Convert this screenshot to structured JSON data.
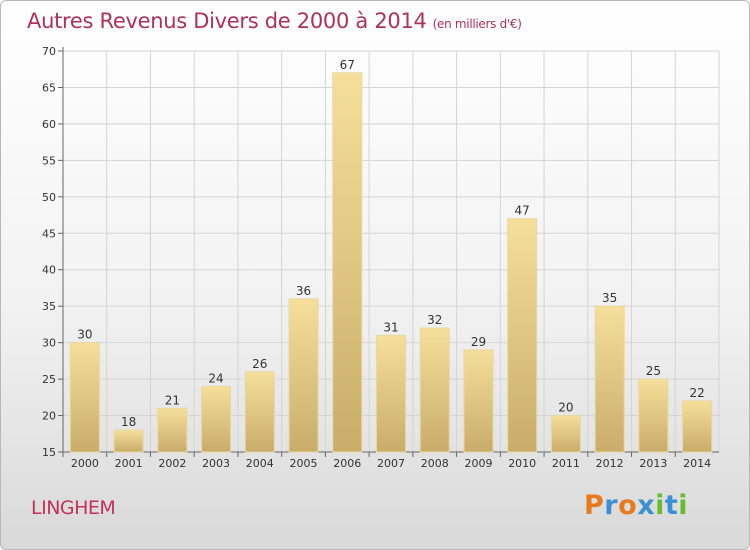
{
  "title": "Autres Revenus Divers de 2000 à 2014",
  "subtitle": "(en milliers d'€)",
  "place": "LINGHEM",
  "logo": {
    "letters": [
      "P",
      "r",
      "o",
      "x",
      "i",
      "t",
      "i"
    ],
    "colors": [
      "#e87a1e",
      "#3a8fd6",
      "#e87a1e",
      "#3a8fd6",
      "#6aba2e",
      "#3a8fd6",
      "#6aba2e"
    ]
  },
  "colors": {
    "bar_light": "#f6df9a",
    "bar_dark": "#c8ad6a",
    "grid": "#d4d4d4",
    "title": "#b0305a"
  },
  "chart_data": {
    "type": "bar",
    "categories": [
      "2000",
      "2001",
      "2002",
      "2003",
      "2004",
      "2005",
      "2006",
      "2007",
      "2008",
      "2009",
      "2010",
      "2011",
      "2012",
      "2013",
      "2014"
    ],
    "values": [
      30,
      18,
      21,
      24,
      26,
      36,
      67,
      31,
      32,
      29,
      47,
      20,
      35,
      25,
      22
    ],
    "title": "Autres Revenus Divers de 2000 à 2014",
    "subtitle": "(en milliers d'€)",
    "ylim": [
      15,
      70
    ],
    "yticks": [
      15,
      20,
      25,
      30,
      35,
      40,
      45,
      50,
      55,
      60,
      65,
      70
    ],
    "grid": true,
    "legend": "none"
  }
}
